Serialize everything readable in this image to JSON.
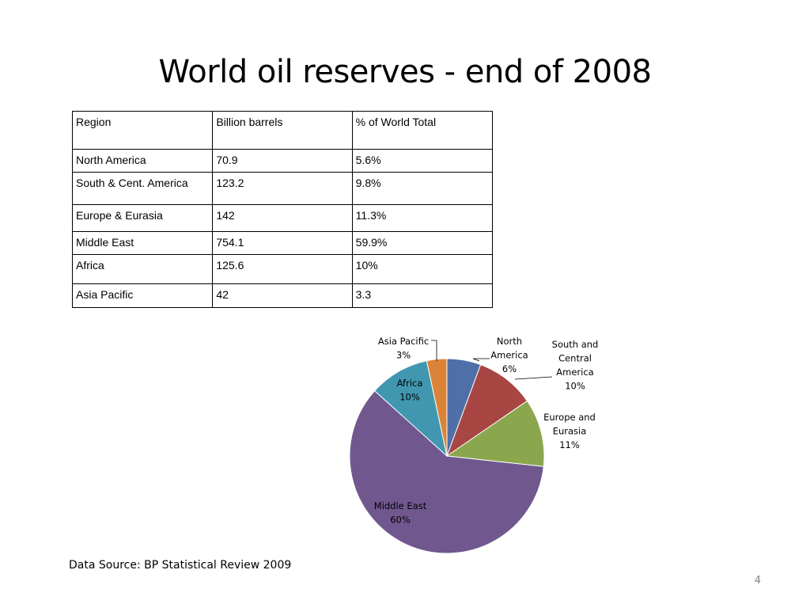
{
  "slide": {
    "title": "World oil reserves - end of 2008",
    "source": "Data Source: BP Statistical Review 2009",
    "page_number": "4"
  },
  "table": {
    "headers": [
      "Region",
      "Billion barrels",
      "% of World Total"
    ],
    "rows": [
      [
        "North America",
        "70.9",
        "5.6%"
      ],
      [
        "South & Cent.  America",
        "123.2",
        "9.8%"
      ],
      [
        "Europe  & Eurasia",
        "142",
        "11.3%"
      ],
      [
        "Middle East",
        "754.1",
        "59.9%"
      ],
      [
        "Africa",
        "125.6",
        "10%"
      ],
      [
        "Asia Pacific",
        "42",
        "3.3"
      ]
    ]
  },
  "chart_data": {
    "type": "pie",
    "categories": [
      "North America",
      "South and Central America",
      "Europe and Eurasia",
      "Middle East",
      "Africa",
      "Asia Pacific"
    ],
    "values": [
      70.9,
      123.2,
      142,
      754.1,
      125.6,
      42
    ],
    "data_labels": [
      [
        "North",
        "America",
        "6%"
      ],
      [
        "South and",
        "Central",
        "America",
        "10%"
      ],
      [
        "Europe and",
        "Eurasia",
        "11%"
      ],
      [
        "Middle East",
        "60%"
      ],
      [
        "Africa",
        "10%"
      ],
      [
        "Asia Pacific",
        "3%"
      ]
    ],
    "colors": [
      "#4f6fa9",
      "#a84643",
      "#8aa74e",
      "#70588f",
      "#4197b0",
      "#db8438"
    ],
    "start": "12 o'clock, clockwise",
    "legend": "none"
  }
}
